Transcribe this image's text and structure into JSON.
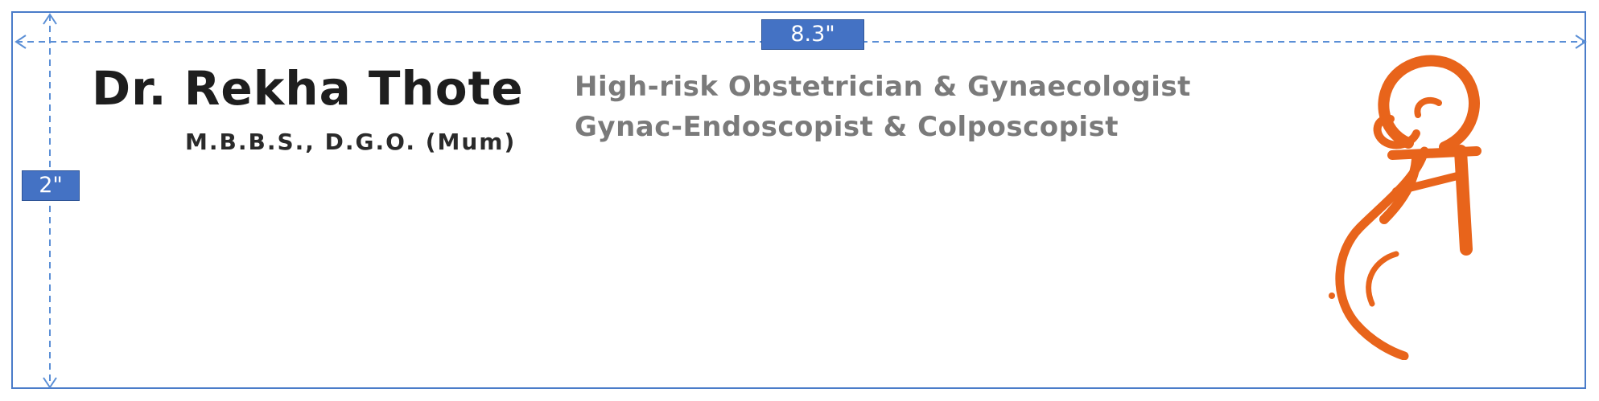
{
  "dimensions": {
    "width_label": "8.3\"",
    "height_label": "2\""
  },
  "header": {
    "name": "Dr. Rekha Thote",
    "qualifications": "M.B.B.S., D.G.O. (Mum)",
    "specialties": [
      "High-risk Obstetrician & Gynaecologist",
      "Gynac-Endoscopist & Colposcopist"
    ]
  },
  "logo": {
    "name": "shri-logo-icon",
    "color": "#e8641b"
  },
  "colors": {
    "dimension_line": "#4a7cc9",
    "dimension_label_bg": "#4472c4"
  }
}
